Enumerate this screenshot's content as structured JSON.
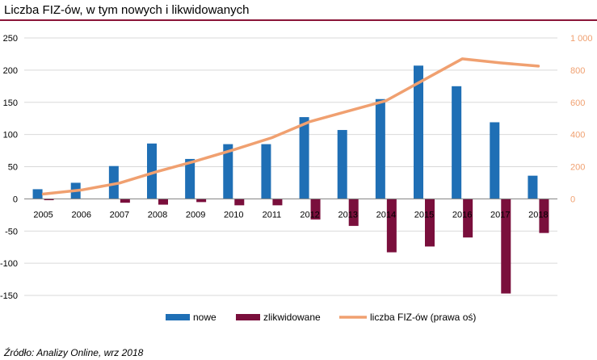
{
  "title": "Liczba FIZ-ów, w tym nowych i likwidowanych",
  "source": "Źródło: Analizy Online, wrz 2018",
  "colors": {
    "title_rule": "#8a1538",
    "nowe": "#1f6fb5",
    "zlikwidowane": "#7a0f3c",
    "liczba": "#f0a070",
    "grid": "#d9d9d9"
  },
  "chart_data": {
    "type": "bar",
    "categories": [
      "2005",
      "2006",
      "2007",
      "2008",
      "2009",
      "2010",
      "2011",
      "2012",
      "2013",
      "2014",
      "2015",
      "2016",
      "2017",
      "2018"
    ],
    "series": [
      {
        "name": "nowe",
        "type": "bar",
        "axis": "left",
        "values": [
          15,
          25,
          51,
          86,
          62,
          85,
          85,
          127,
          107,
          155,
          207,
          175,
          119,
          36
        ]
      },
      {
        "name": "zlikwidowane",
        "type": "bar",
        "axis": "left",
        "values": [
          -2,
          0,
          -6,
          -9,
          -5,
          -10,
          -10,
          -32,
          -42,
          -83,
          -74,
          -60,
          -147,
          -53
        ]
      },
      {
        "name": "liczba FIZ-ów (prawa oś)",
        "type": "line",
        "axis": "right",
        "values": [
          30,
          55,
          98,
          170,
          235,
          305,
          380,
          480,
          545,
          610,
          740,
          870,
          845,
          825
        ]
      }
    ],
    "left_axis": {
      "min": -150,
      "max": 250,
      "step": 50,
      "tick_labels": [
        "250",
        "200",
        "150",
        "100",
        "50",
        "0",
        "-50",
        "-100",
        "-150"
      ]
    },
    "right_axis": {
      "min": 0,
      "max": 1000,
      "step": 200,
      "tick_labels": [
        "1 000",
        "800",
        "600",
        "400",
        "200",
        "0"
      ]
    },
    "grid": true,
    "legend_position": "bottom"
  }
}
